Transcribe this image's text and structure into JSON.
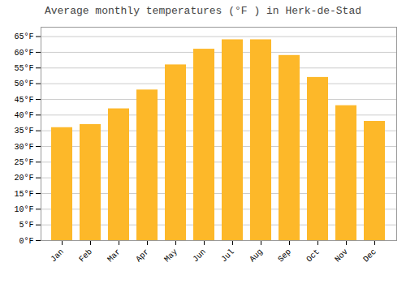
{
  "chart_data": {
    "type": "bar",
    "title": "Average monthly temperatures (°F ) in Herk-de-Stad",
    "categories": [
      "Jan",
      "Feb",
      "Mar",
      "Apr",
      "May",
      "Jun",
      "Jul",
      "Aug",
      "Sep",
      "Oct",
      "Nov",
      "Dec"
    ],
    "values": [
      36,
      37,
      42,
      48,
      56,
      61,
      64,
      64,
      59,
      52,
      43,
      38
    ],
    "color": "#FDB829",
    "ylim": [
      0,
      68
    ],
    "yticks": [
      {
        "value": 0,
        "label": "0°F"
      },
      {
        "value": 5,
        "label": "5°F"
      },
      {
        "value": 10,
        "label": "10°F"
      },
      {
        "value": 15,
        "label": "15°F"
      },
      {
        "value": 20,
        "label": "20°F"
      },
      {
        "value": 25,
        "label": "25°F"
      },
      {
        "value": 30,
        "label": "30°F"
      },
      {
        "value": 35,
        "label": "35°F"
      },
      {
        "value": 40,
        "label": "40°F"
      },
      {
        "value": 45,
        "label": "45°F"
      },
      {
        "value": 50,
        "label": "50°F"
      },
      {
        "value": 55,
        "label": "55°F"
      },
      {
        "value": 60,
        "label": "60°F"
      },
      {
        "value": 65,
        "label": "65°F"
      }
    ],
    "grid": true
  }
}
